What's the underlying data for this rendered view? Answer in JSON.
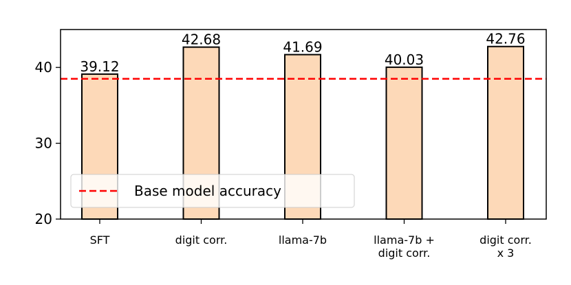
{
  "chart_data": {
    "type": "bar",
    "categories": [
      "SFT",
      "digit corr.",
      "llama-7b",
      "llama-7b +\ndigit corr.",
      "digit corr.\nx 3"
    ],
    "values": [
      39.12,
      42.68,
      41.69,
      40.03,
      42.76
    ],
    "color": "#fdd9b8",
    "edgecolor": "#000000",
    "ylim": [
      20,
      45
    ],
    "yticks": [
      20,
      30,
      40
    ],
    "baseline": {
      "value": 38.5,
      "label": "Base model accuracy",
      "color": "#ff0000"
    },
    "legend": "lower left"
  }
}
